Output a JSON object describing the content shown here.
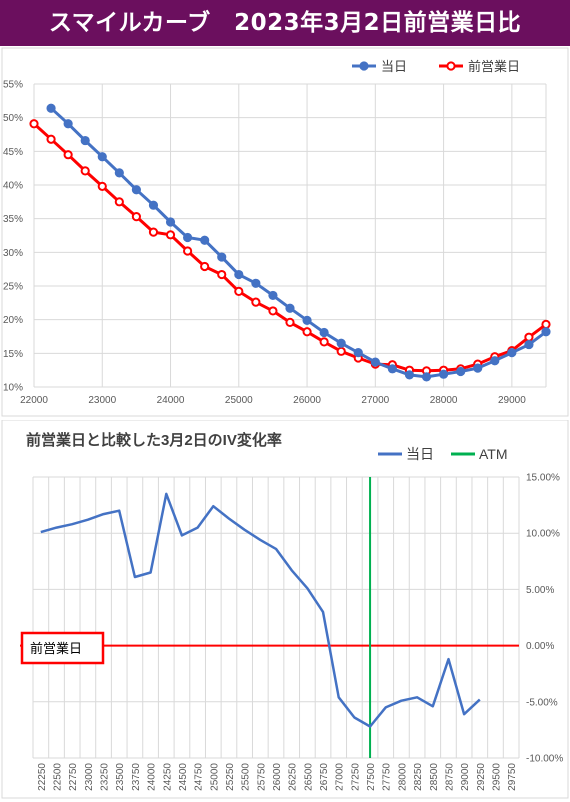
{
  "banner": {
    "title": "スマイルカーブ　2023年3月2日前営業日比"
  },
  "colors": {
    "banner": "#6b0f5e",
    "today": "#4472c4",
    "prev": "#ff0000",
    "change": "#4472c4",
    "atm": "#00b050",
    "zero": "#ff0000"
  },
  "chart_data": [
    {
      "type": "line",
      "title": "",
      "legend_position": "top-right",
      "grid": true,
      "xlim": [
        22000,
        29500
      ],
      "ylim": [
        10,
        55
      ],
      "x_ticks": [
        "22000",
        "23000",
        "24000",
        "25000",
        "26000",
        "27000",
        "28000",
        "29000"
      ],
      "y_ticks": [
        "10%",
        "15%",
        "20%",
        "25%",
        "30%",
        "35%",
        "40%",
        "45%",
        "50%",
        "55%"
      ],
      "series": [
        {
          "name": "当日",
          "color": "#4472c4",
          "x": [
            22250,
            22500,
            22750,
            23000,
            23250,
            23500,
            23750,
            24000,
            24250,
            24500,
            24750,
            25000,
            25250,
            25500,
            25750,
            26000,
            26250,
            26500,
            26750,
            27000,
            27250,
            27500,
            27750,
            28000,
            28250,
            28500,
            28750,
            29000,
            29250,
            29500
          ],
          "values": [
            51.4,
            49.1,
            46.6,
            44.2,
            41.8,
            39.3,
            37.0,
            34.5,
            32.2,
            31.8,
            29.3,
            26.7,
            25.4,
            23.6,
            21.7,
            19.9,
            18.1,
            16.5,
            15.1,
            13.7,
            12.7,
            11.8,
            11.5,
            11.9,
            12.3,
            12.8,
            13.9,
            15.1,
            16.3,
            18.2
          ]
        },
        {
          "name": "前営業日",
          "color": "#ff0000",
          "x": [
            22000,
            22250,
            22500,
            22750,
            23000,
            23250,
            23500,
            23750,
            24000,
            24250,
            24500,
            24750,
            25000,
            25250,
            25500,
            25750,
            26000,
            26250,
            26500,
            26750,
            27000,
            27250,
            27500,
            27750,
            28000,
            28250,
            28500,
            28750,
            29000,
            29250,
            29500
          ],
          "values": [
            49.1,
            46.8,
            44.5,
            42.1,
            39.8,
            37.5,
            35.3,
            33.0,
            32.6,
            30.2,
            27.9,
            26.7,
            24.2,
            22.6,
            21.3,
            19.6,
            18.2,
            16.7,
            15.3,
            14.3,
            13.4,
            13.3,
            12.5,
            12.4,
            12.5,
            12.7,
            13.4,
            14.5,
            15.4,
            17.4,
            19.3
          ]
        }
      ]
    },
    {
      "type": "line",
      "title": "前営業日と比較した3月2日のIV変化率",
      "legend_position": "top-right",
      "grid": true,
      "ylim": [
        -10,
        15
      ],
      "y_ticks": [
        "15.00%",
        "10.00%",
        "5.00%",
        "0.00%",
        "-5.00%",
        "-10.00%"
      ],
      "categories": [
        "22250",
        "22500",
        "22750",
        "23000",
        "23250",
        "23500",
        "23750",
        "24000",
        "24250",
        "24500",
        "24750",
        "25000",
        "25250",
        "25500",
        "25750",
        "26000",
        "26250",
        "26500",
        "26750",
        "27000",
        "27250",
        "27500",
        "27750",
        "28000",
        "28250",
        "28500",
        "28750",
        "29000",
        "29250",
        "29500",
        "29750"
      ],
      "series": [
        {
          "name": "当日",
          "color": "#4472c4",
          "values": [
            10.1,
            10.5,
            10.8,
            11.2,
            11.7,
            12.0,
            6.1,
            6.5,
            13.5,
            9.8,
            10.5,
            12.4,
            11.3,
            10.3,
            9.4,
            8.6,
            6.7,
            5.1,
            3.0,
            -4.6,
            -6.4,
            -7.2,
            -5.5,
            -4.9,
            -4.6,
            -5.4,
            -1.2,
            -6.1,
            -4.8,
            null,
            null
          ]
        }
      ],
      "atm": {
        "name": "ATM",
        "category": "27500",
        "color": "#00b050"
      },
      "reference_label": "前営業日"
    }
  ]
}
